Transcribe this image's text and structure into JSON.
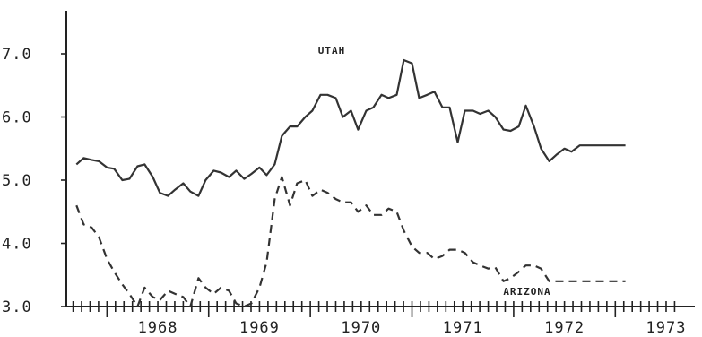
{
  "chart_data": {
    "type": "line",
    "title": "",
    "xlabel": "",
    "ylabel": "",
    "ylim": [
      3.0,
      7.5
    ],
    "xlim": [
      1967.6,
      1973.65
    ],
    "y_ticks": [
      3.0,
      4.0,
      5.0,
      6.0,
      7.0
    ],
    "y_tick_labels": [
      "3.0",
      "4.0",
      "5.0",
      "6.0",
      "7.0"
    ],
    "x_tick_labels": [
      "1968",
      "1969",
      "1970",
      "1971",
      "1972",
      "1973"
    ],
    "x_tick_positions": [
      1968.0,
      1969.0,
      1970.0,
      1971.0,
      1972.0,
      1973.0
    ],
    "grid": false,
    "legend": "none",
    "series": [
      {
        "name": "UTAH",
        "style": "solid",
        "color": "#333333",
        "x": [
          1967.7,
          1967.77,
          1967.85,
          1967.92,
          1968.0,
          1968.07,
          1968.15,
          1968.22,
          1968.3,
          1968.37,
          1968.45,
          1968.52,
          1968.6,
          1968.67,
          1968.75,
          1968.82,
          1968.9,
          1968.97,
          1969.05,
          1969.12,
          1969.2,
          1969.27,
          1969.35,
          1969.42,
          1969.5,
          1969.57,
          1969.65,
          1969.72,
          1969.8,
          1969.87,
          1969.95,
          1970.02,
          1970.1,
          1970.17,
          1970.25,
          1970.32,
          1970.4,
          1970.47,
          1970.55,
          1970.62,
          1970.7,
          1970.77,
          1970.85,
          1970.92,
          1971.0,
          1971.07,
          1971.15,
          1971.22,
          1971.3,
          1971.37,
          1971.45,
          1971.52,
          1971.6,
          1971.67,
          1971.75,
          1971.82,
          1971.9,
          1971.97,
          1972.05,
          1972.12,
          1972.2,
          1972.27,
          1972.35,
          1972.42,
          1972.5,
          1972.57,
          1972.65,
          1972.72,
          1972.8,
          1972.87,
          1972.95,
          1973.02,
          1973.1
        ],
        "values": [
          5.25,
          5.35,
          5.32,
          5.3,
          5.2,
          5.18,
          5.0,
          5.02,
          5.22,
          5.25,
          5.05,
          4.8,
          4.75,
          4.85,
          4.95,
          4.82,
          4.75,
          5.0,
          5.15,
          5.12,
          5.05,
          5.15,
          5.02,
          5.1,
          5.2,
          5.08,
          5.25,
          5.7,
          5.85,
          5.85,
          6.0,
          6.1,
          6.35,
          6.35,
          6.3,
          6.0,
          6.1,
          5.8,
          6.1,
          6.15,
          6.35,
          6.3,
          6.35,
          6.9,
          6.85,
          6.3,
          6.35,
          6.4,
          6.15,
          6.15,
          5.6,
          6.1,
          6.1,
          6.05,
          6.1,
          6.0,
          5.8,
          5.78,
          5.85,
          6.18,
          5.85,
          5.5,
          5.3,
          5.4,
          5.5,
          5.45,
          5.55,
          5.55,
          5.55,
          5.55,
          5.55,
          5.55,
          5.55
        ]
      },
      {
        "name": "ARIZONA",
        "style": "dashed",
        "color": "#333333",
        "x": [
          1967.7,
          1967.77,
          1967.85,
          1967.92,
          1968.0,
          1968.07,
          1968.15,
          1968.22,
          1968.3,
          1968.37,
          1968.45,
          1968.52,
          1968.6,
          1968.67,
          1968.75,
          1968.82,
          1968.9,
          1968.97,
          1969.05,
          1969.12,
          1969.2,
          1969.27,
          1969.35,
          1969.42,
          1969.5,
          1969.57,
          1969.65,
          1969.72,
          1969.8,
          1969.87,
          1969.95,
          1970.02,
          1970.1,
          1970.17,
          1970.25,
          1970.32,
          1970.4,
          1970.47,
          1970.55,
          1970.62,
          1970.7,
          1970.77,
          1970.85,
          1970.92,
          1971.0,
          1971.07,
          1971.15,
          1971.22,
          1971.3,
          1971.37,
          1971.45,
          1971.52,
          1971.6,
          1971.67,
          1971.75,
          1971.82,
          1971.9,
          1971.97,
          1972.05,
          1972.12,
          1972.2,
          1972.27,
          1972.35,
          1972.42,
          1972.5,
          1972.57,
          1972.65,
          1972.72,
          1972.8,
          1972.87,
          1972.95,
          1973.02,
          1973.1
        ],
        "values": [
          4.6,
          4.3,
          4.25,
          4.1,
          3.75,
          3.55,
          3.35,
          3.2,
          3.0,
          3.3,
          3.15,
          3.1,
          3.25,
          3.2,
          3.15,
          3.0,
          3.45,
          3.3,
          3.2,
          3.3,
          3.25,
          3.05,
          3.0,
          3.05,
          3.3,
          3.7,
          4.7,
          5.05,
          4.6,
          4.95,
          5.0,
          4.75,
          4.85,
          4.8,
          4.7,
          4.65,
          4.65,
          4.5,
          4.6,
          4.45,
          4.45,
          4.55,
          4.5,
          4.2,
          3.95,
          3.85,
          3.85,
          3.75,
          3.8,
          3.9,
          3.9,
          3.85,
          3.7,
          3.65,
          3.6,
          3.62,
          3.4,
          3.45,
          3.55,
          3.65,
          3.65,
          3.6,
          3.4,
          3.4,
          3.4,
          3.4,
          3.4,
          3.4,
          3.4,
          3.4,
          3.4,
          3.4,
          3.4
        ]
      }
    ]
  }
}
